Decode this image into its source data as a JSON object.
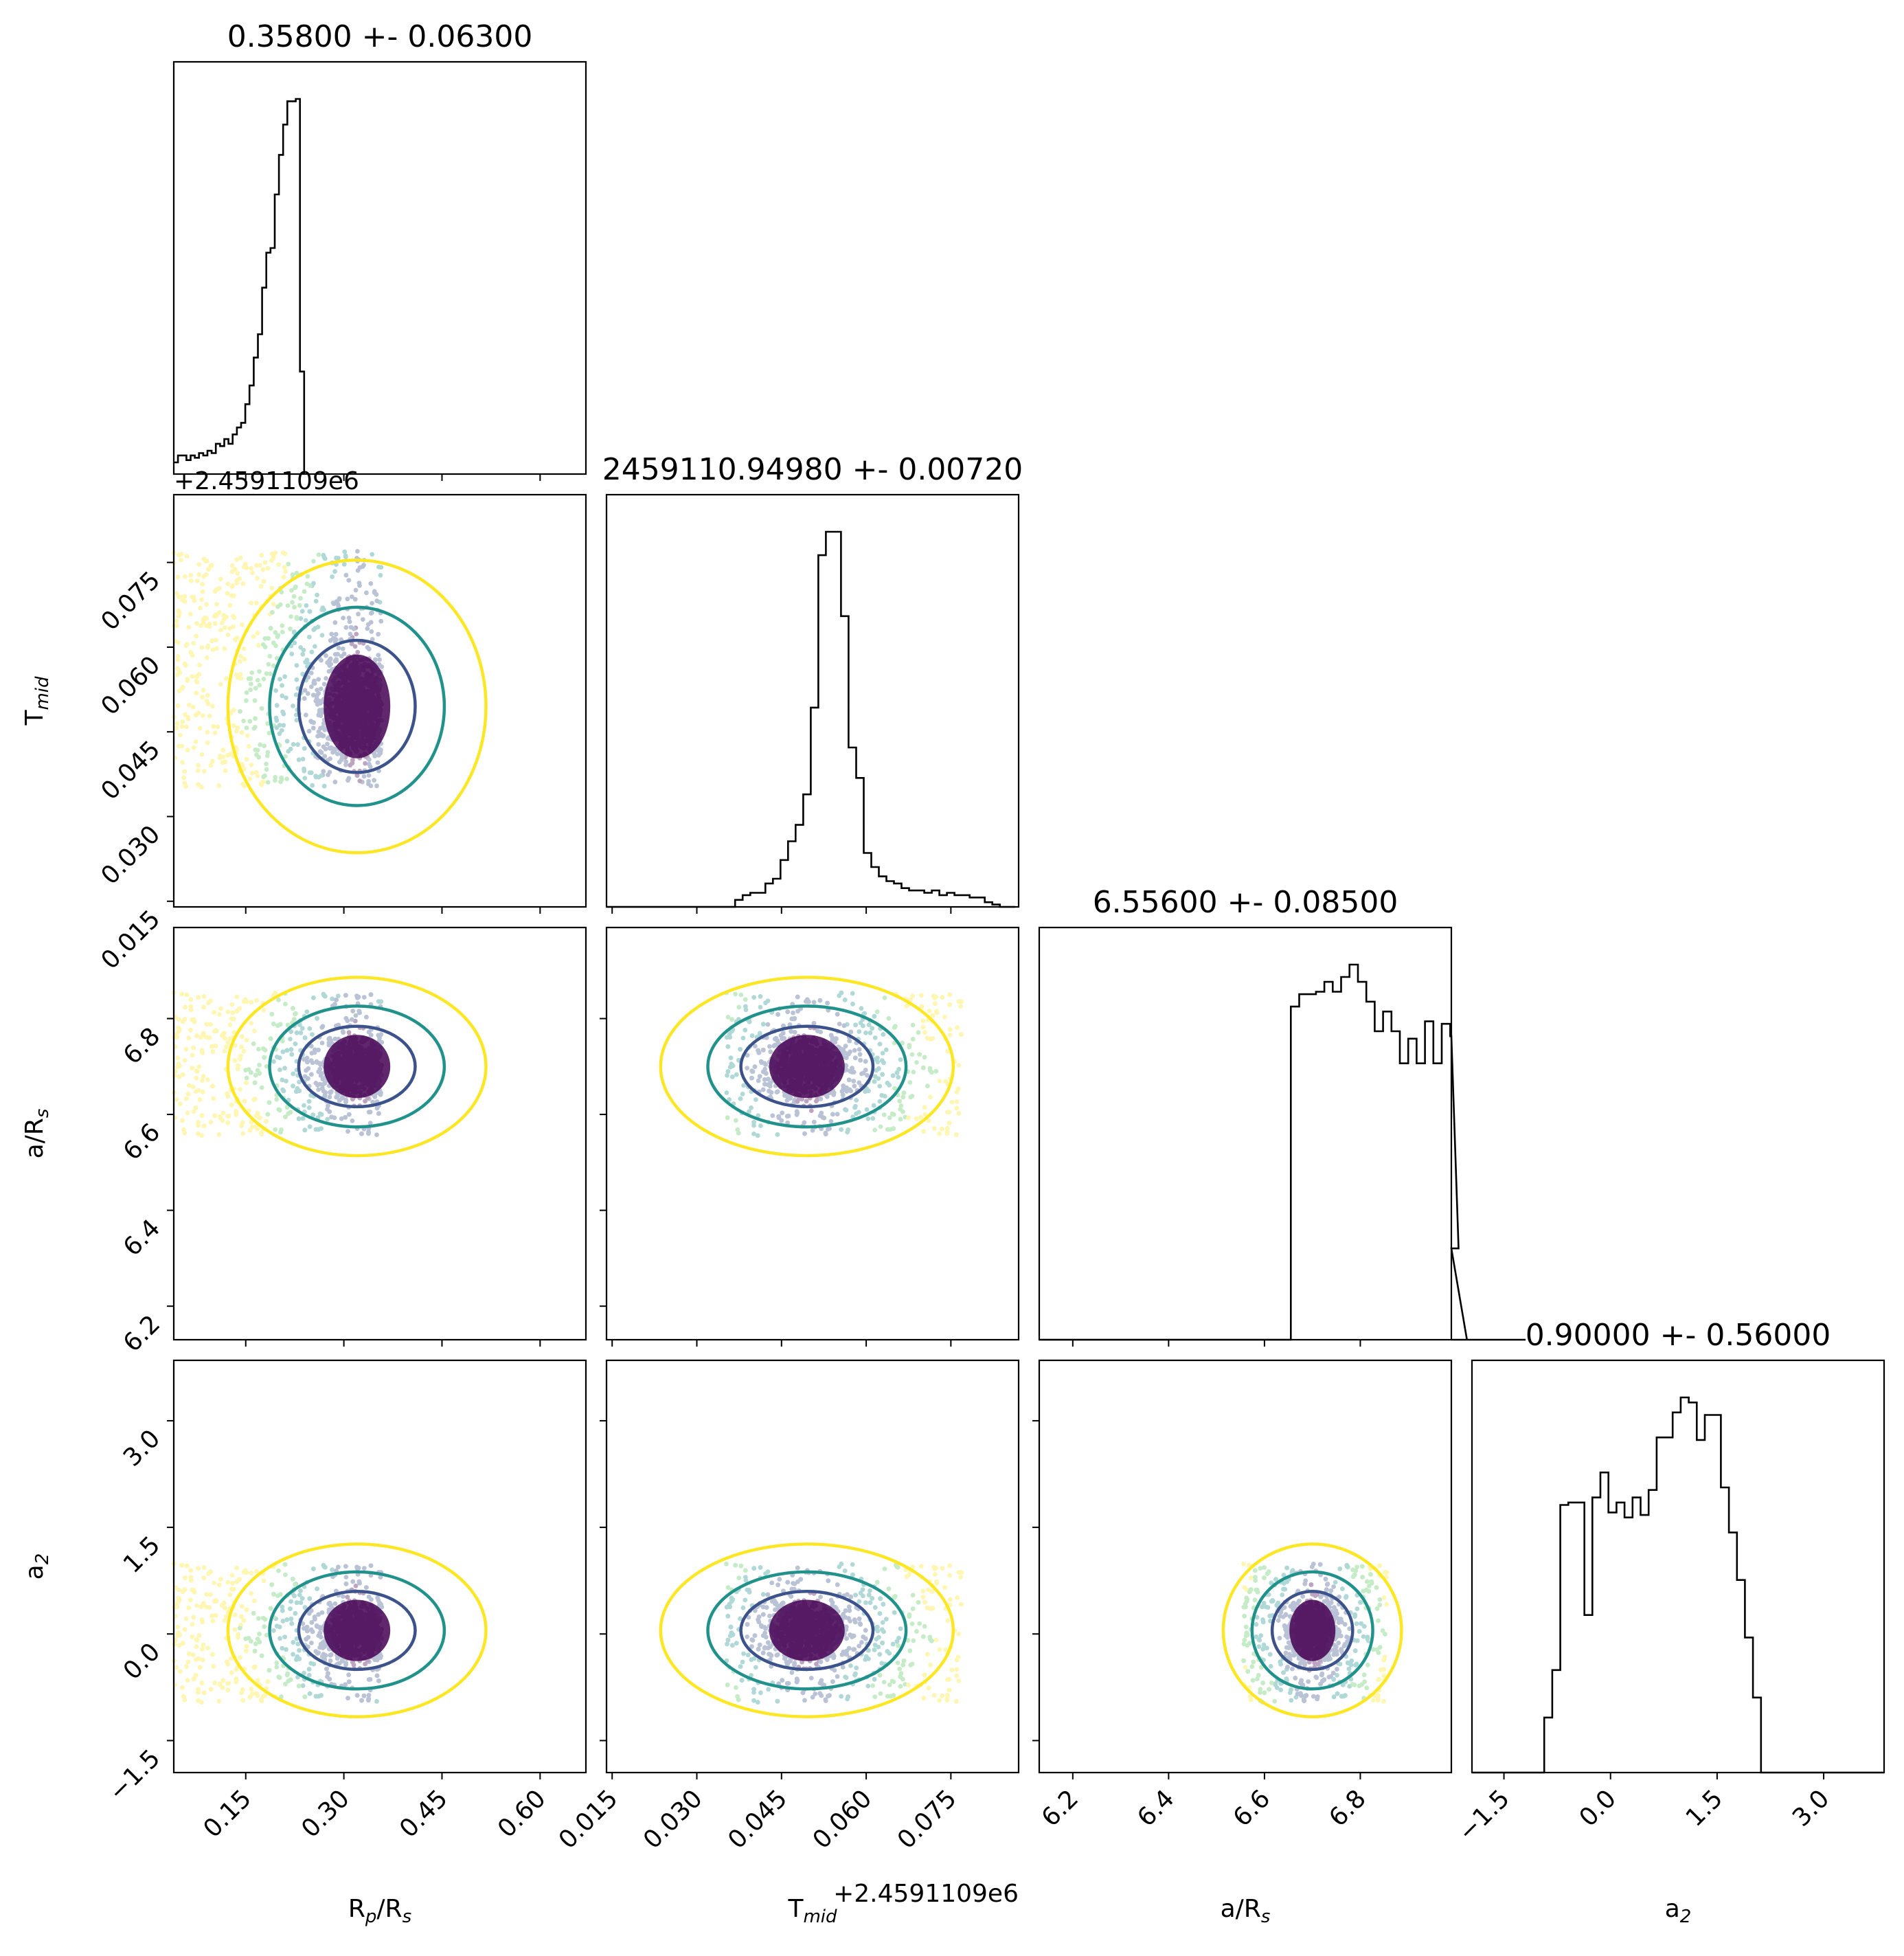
{
  "chart_data": {
    "type": "corner",
    "parameters": [
      {
        "key": "rprs",
        "label": "Rp/Rs",
        "label_base": "R",
        "label_sub": "p",
        "label_mid": "/R",
        "label_sub2": "s",
        "range": [
          0.04,
          0.67
        ],
        "ticks": [
          0.15,
          0.3,
          0.45,
          0.6
        ],
        "tick_labels": [
          "0.15",
          "0.30",
          "0.45",
          "0.60"
        ],
        "title": "0.35800 +- 0.06300"
      },
      {
        "key": "tmid",
        "label": "Tmid",
        "label_base": "T",
        "label_sub": "mid",
        "label_mid": "",
        "label_sub2": "",
        "range": [
          0.014,
          0.087
        ],
        "ticks": [
          0.015,
          0.03,
          0.045,
          0.06,
          0.075
        ],
        "tick_labels": [
          "0.015",
          "0.030",
          "0.045",
          "0.060",
          "0.075"
        ],
        "offset_text": "+2.4591109e6",
        "title": "2459110.94980 +- 0.00720"
      },
      {
        "key": "ars",
        "label": "a/Rs",
        "label_base": "a/R",
        "label_sub": "s",
        "label_mid": "",
        "label_sub2": "",
        "range": [
          6.13,
          6.99
        ],
        "ticks": [
          6.2,
          6.4,
          6.6,
          6.8
        ],
        "tick_labels": [
          "6.2",
          "6.4",
          "6.6",
          "6.8"
        ],
        "title": "6.55600 +- 0.08500"
      },
      {
        "key": "a2",
        "label": "a2",
        "label_base": "a",
        "label_sub": "2",
        "label_mid": "",
        "label_sub2": "",
        "range": [
          -1.95,
          3.85
        ],
        "ticks": [
          -1.5,
          0.0,
          1.5,
          3.0
        ],
        "tick_labels": [
          "−1.5",
          "0.0",
          "1.5",
          "3.0"
        ],
        "title": "0.90000 +- 0.56000"
      }
    ],
    "histograms": {
      "rprs": {
        "edges_start": 0.04,
        "bin_width": 0.00643,
        "counts": [
          5,
          8,
          8,
          6,
          8,
          7,
          9,
          8,
          10,
          9,
          13,
          12,
          15,
          13,
          17,
          20,
          22,
          30,
          38,
          50,
          60,
          80,
          95,
          97,
          120,
          137,
          150,
          160,
          160,
          161,
          44
        ]
      },
      "tmid": {
        "edges_start": 0.014,
        "bin_width": 0.00134,
        "counts": [
          0,
          0,
          0,
          0,
          0,
          0,
          0,
          0,
          0,
          0,
          0,
          0,
          0,
          0,
          0,
          0,
          0,
          3,
          5,
          6,
          6,
          10,
          12,
          20,
          28,
          35,
          48,
          85,
          150,
          160,
          160,
          124,
          68,
          55,
          23,
          17,
          13,
          11,
          10,
          8,
          7,
          7,
          6,
          7,
          5,
          6,
          5,
          5,
          4,
          4,
          2,
          1,
          0,
          0
        ]
      },
      "ars": {
        "edges_start": 6.13,
        "bin_width": 0.0175,
        "counts": [
          0,
          0,
          0,
          0,
          0,
          0,
          0,
          0,
          0,
          0,
          0,
          0,
          0,
          0,
          0,
          0,
          0,
          0,
          0,
          0,
          0,
          0,
          0,
          0,
          0,
          0,
          0,
          0,
          0,
          0,
          135,
          140,
          140,
          141,
          145,
          141,
          147,
          152,
          145,
          137,
          125,
          133,
          125,
          112,
          122,
          112,
          129,
          112,
          128,
          123,
          37,
          0,
          0,
          0,
          0,
          0,
          0,
          0,
          0
        ]
      },
      "a2": {
        "edges_start": -1.95,
        "bin_width": 0.113,
        "counts": [
          0,
          0,
          0,
          0,
          0,
          0,
          0,
          0,
          0,
          22,
          41,
          107,
          108,
          108,
          63,
          110,
          120,
          104,
          108,
          102,
          110,
          103,
          113,
          134,
          134,
          144,
          150,
          148,
          133,
          143,
          143,
          114,
          96,
          77,
          54,
          30,
          0,
          0,
          0,
          0,
          0,
          0,
          0,
          0,
          0,
          0,
          0,
          0,
          0,
          0,
          0,
          0
        ]
      }
    },
    "scatter_extents": {
      "rprs": [
        0.04,
        0.358
      ],
      "tmid": [
        0.0352,
        0.077
      ],
      "ars": [
        6.556,
        6.856
      ],
      "a2": [
        -0.96,
        1.0
      ]
    },
    "densest_core": {
      "rprs": 0.32,
      "tmid": 0.0495,
      "ars": 6.7,
      "a2": 0.05
    },
    "colors": {
      "hist_line": "#000000",
      "contour_outer": "#fde725",
      "contour_mid": "#21918c",
      "contour_inner": "#3b528b",
      "core": "#440154",
      "scatter_palette": [
        "#440154",
        "#3b528b",
        "#21918c",
        "#5ec962",
        "#fde725"
      ]
    }
  }
}
